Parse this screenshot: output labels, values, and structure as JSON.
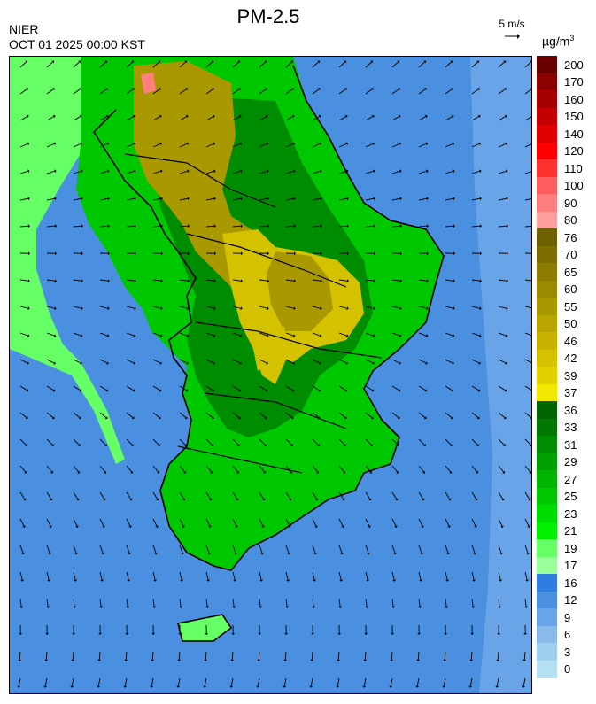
{
  "header": {
    "title": "PM-2.5",
    "agency": "NIER",
    "timestamp": "OCT 01 2025 00:00 KST"
  },
  "wind_reference": {
    "label": "5 m/s"
  },
  "legend": {
    "unit_prefix": "µg/m",
    "unit_power": "3",
    "labels": [
      "200",
      "170",
      "160",
      "150",
      "140",
      "120",
      "110",
      "100",
      "90",
      "80",
      "76",
      "70",
      "65",
      "60",
      "55",
      "50",
      "46",
      "42",
      "39",
      "37",
      "36",
      "33",
      "31",
      "29",
      "27",
      "25",
      "23",
      "21",
      "19",
      "17",
      "16",
      "12",
      "9",
      "6",
      "3",
      "0"
    ],
    "colors": [
      "#6b0000",
      "#8b0000",
      "#a80000",
      "#c40000",
      "#e00000",
      "#ff0000",
      "#ff3030",
      "#ff5e5e",
      "#ff7f7f",
      "#ff9e9e",
      "#6e6000",
      "#7d6e00",
      "#8c7c00",
      "#9b8a00",
      "#aa9800",
      "#b9a600",
      "#c8b400",
      "#d4c200",
      "#e0d000",
      "#f0e800",
      "#006400",
      "#007800",
      "#008c00",
      "#00a000",
      "#00b400",
      "#00c800",
      "#00dc00",
      "#00f000",
      "#66ff66",
      "#99ff99",
      "#2f7de0",
      "#4a8fe0",
      "#6aa4e8",
      "#88bbea",
      "#9cd0ee",
      "#b4e0f2"
    ]
  },
  "map": {
    "background_color": "#4a8fe0",
    "levels": {
      "low_green": "#66ff66",
      "mid_green": "#00c800",
      "dark_green": "#008c00",
      "olive": "#aa9800",
      "yellow": "#d4c200",
      "pink": "#ff7f7f"
    }
  }
}
